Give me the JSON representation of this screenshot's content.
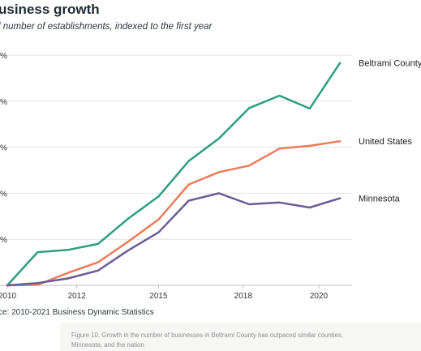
{
  "title": "usiness growth",
  "subtitle": "l number of establishments, indexed to the first year",
  "source": "ce: 2010-2021 Business Dynamic Statistics",
  "caption": "Figure 10. Growth in the number of businesses in Beltrami County has outpaced similar counties, Minnesota, and the nation",
  "chart_data": {
    "type": "line",
    "x": [
      2010,
      2011,
      2012,
      2013,
      2014,
      2015,
      2016,
      2017,
      2018,
      2019,
      2020,
      2021
    ],
    "xticks": [
      "2010",
      "2012",
      "2015",
      "2018",
      "2020"
    ],
    "xtick_values": [
      2010,
      2012.3,
      2015,
      2017.8,
      2020.3
    ],
    "xlim": [
      2010,
      2021.4
    ],
    "ylim": [
      0,
      5
    ],
    "ytick_labels": [
      "",
      "%",
      "%",
      "%",
      "%",
      "%"
    ],
    "grid": true,
    "series": [
      {
        "name": "Beltrami County,",
        "color": "#2e9e7e",
        "values": [
          0.0,
          0.72,
          0.77,
          0.9,
          1.45,
          1.93,
          2.7,
          3.19,
          3.85,
          4.12,
          3.84,
          4.83
        ]
      },
      {
        "name": "United States",
        "color": "#ee7a59",
        "values": [
          0.0,
          0.01,
          0.27,
          0.5,
          0.95,
          1.43,
          2.19,
          2.46,
          2.6,
          2.97,
          3.03,
          3.13
        ]
      },
      {
        "name": "Minnesota",
        "color": "#6c5b96",
        "values": [
          0.0,
          0.05,
          0.15,
          0.32,
          0.76,
          1.15,
          1.84,
          2.0,
          1.76,
          1.8,
          1.69,
          1.89
        ]
      }
    ]
  }
}
